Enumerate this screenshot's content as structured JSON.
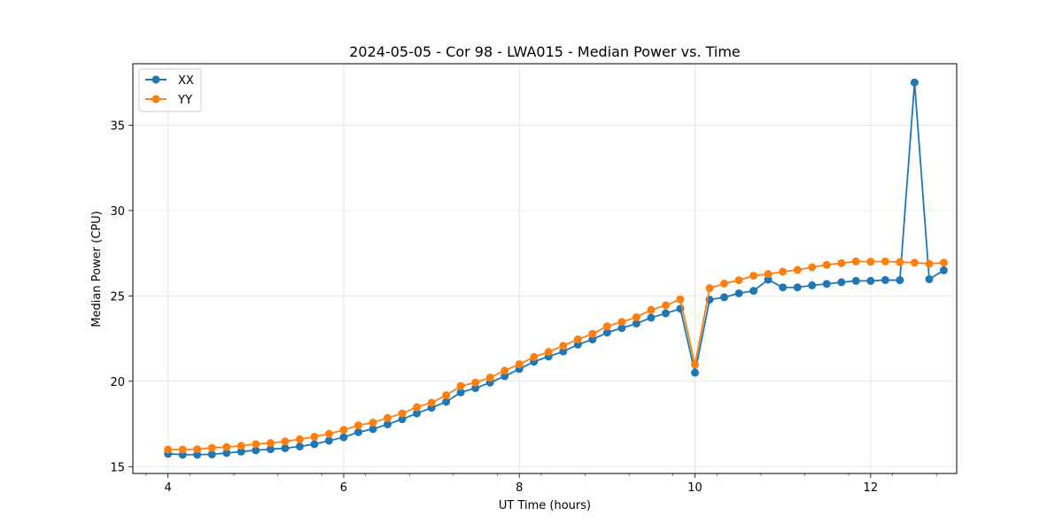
{
  "chart_data": {
    "type": "line",
    "title": "2024-05-05 - Cor 98 - LWA015 - Median Power vs. Time",
    "xlabel": "UT Time (hours)",
    "ylabel": "Median Power (CPU)",
    "xlim": [
      3.6,
      12.98
    ],
    "ylim": [
      14.6,
      38.6
    ],
    "xticks": [
      4,
      6,
      8,
      10,
      12
    ],
    "yticks": [
      15,
      20,
      25,
      30,
      35
    ],
    "xtick_labels": [
      "4",
      "6",
      "8",
      "10",
      "12"
    ],
    "ytick_labels": [
      "15",
      "20",
      "25",
      "30",
      "35"
    ],
    "grid": true,
    "legend_position": "top-left",
    "x": [
      4.0,
      4.167,
      4.333,
      4.5,
      4.667,
      4.833,
      5.0,
      5.167,
      5.333,
      5.5,
      5.667,
      5.833,
      6.0,
      6.167,
      6.333,
      6.5,
      6.667,
      6.833,
      7.0,
      7.167,
      7.333,
      7.5,
      7.667,
      7.833,
      8.0,
      8.167,
      8.333,
      8.5,
      8.667,
      8.833,
      9.0,
      9.167,
      9.333,
      9.5,
      9.667,
      9.833,
      10.0,
      10.167,
      10.333,
      10.5,
      10.667,
      10.833,
      11.0,
      11.167,
      11.333,
      11.5,
      11.667,
      11.833,
      12.0,
      12.167,
      12.333,
      12.5,
      12.667,
      12.833
    ],
    "series": [
      {
        "name": "XX",
        "color": "#1f77b4",
        "values": [
          15.75,
          15.7,
          15.7,
          15.72,
          15.8,
          15.88,
          15.96,
          16.02,
          16.08,
          16.18,
          16.32,
          16.52,
          16.72,
          17.02,
          17.2,
          17.48,
          17.78,
          18.12,
          18.45,
          18.8,
          19.35,
          19.6,
          19.92,
          20.3,
          20.72,
          21.15,
          21.45,
          21.75,
          22.15,
          22.45,
          22.85,
          23.12,
          23.38,
          23.72,
          23.98,
          24.25,
          20.5,
          24.78,
          24.92,
          25.15,
          25.3,
          25.95,
          25.5,
          25.5,
          25.62,
          25.7,
          25.8,
          25.88,
          25.88,
          25.93,
          25.92,
          37.5,
          25.98,
          26.5
        ]
      },
      {
        "name": "YY",
        "color": "#ff7f0e",
        "values": [
          16.0,
          16.0,
          16.02,
          16.1,
          16.15,
          16.22,
          16.32,
          16.38,
          16.48,
          16.6,
          16.75,
          16.92,
          17.15,
          17.42,
          17.58,
          17.85,
          18.12,
          18.48,
          18.75,
          19.18,
          19.72,
          19.92,
          20.22,
          20.62,
          21.0,
          21.42,
          21.72,
          22.08,
          22.45,
          22.78,
          23.22,
          23.48,
          23.75,
          24.18,
          24.45,
          24.8,
          20.98,
          25.45,
          25.72,
          25.92,
          26.18,
          26.28,
          26.42,
          26.52,
          26.68,
          26.82,
          26.92,
          27.02,
          27.0,
          27.02,
          26.98,
          26.95,
          26.88,
          26.95
        ]
      }
    ]
  }
}
